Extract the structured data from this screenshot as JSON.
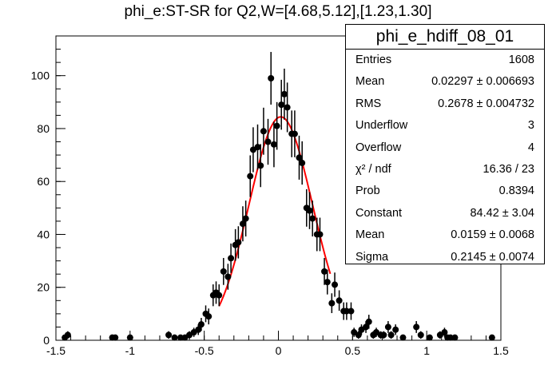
{
  "title": "phi_e:ST-SR for Q2,W=[4.68,5.12],[1.23,1.30]",
  "stats": {
    "name": "phi_e_hdiff_08_01",
    "rows": [
      {
        "key": "Entries",
        "value": "1608"
      },
      {
        "key": "Mean",
        "value": "0.02297 ± 0.006693"
      },
      {
        "key": "RMS",
        "value": "0.2678 ± 0.004732"
      },
      {
        "key": "Underflow",
        "value": "3"
      },
      {
        "key": "Overflow",
        "value": "4"
      },
      {
        "key": "χ² / ndf",
        "value": "16.36 / 23"
      },
      {
        "key": "Prob",
        "value": "0.8394"
      },
      {
        "key": "Constant",
        "value": "84.42 ± 3.04"
      },
      {
        "key": "Mean",
        "value": "0.0159 ± 0.0068"
      },
      {
        "key": "Sigma",
        "value": "0.2145 ± 0.0074"
      }
    ]
  },
  "chart_data": {
    "type": "scatter",
    "title": "phi_e:ST-SR for Q2,W=[4.68,5.12],[1.23,1.30]",
    "xlim": [
      -1.5,
      1.5
    ],
    "ylim": [
      0,
      115
    ],
    "xticks": [
      "-1.5",
      "-1",
      "-0.5",
      "0",
      "0.5",
      "1",
      "1.5"
    ],
    "yticks": [
      "0",
      "20",
      "40",
      "60",
      "80",
      "100"
    ],
    "grid": false,
    "marker_color": "#000000",
    "fit_color": "#ff0000",
    "fit": {
      "function": "gaus",
      "constant": 84.42,
      "mean": 0.0159,
      "sigma": 0.2145,
      "range": [
        -0.4,
        0.35
      ]
    },
    "series": [
      {
        "values": [
          [
            -1.44,
            1
          ],
          [
            -1.42,
            2
          ],
          [
            -1.12,
            1
          ],
          [
            -1.1,
            1
          ],
          [
            -1.0,
            1
          ],
          [
            -0.74,
            2
          ],
          [
            -0.7,
            1
          ],
          [
            -0.66,
            1
          ],
          [
            -0.63,
            1
          ],
          [
            -0.6,
            2
          ],
          [
            -0.57,
            3
          ],
          [
            -0.54,
            4
          ],
          [
            -0.52,
            6
          ],
          [
            -0.49,
            10
          ],
          [
            -0.47,
            9
          ],
          [
            -0.44,
            17
          ],
          [
            -0.42,
            18
          ],
          [
            -0.4,
            17
          ],
          [
            -0.37,
            26
          ],
          [
            -0.34,
            24
          ],
          [
            -0.32,
            31
          ],
          [
            -0.29,
            36
          ],
          [
            -0.27,
            37
          ],
          [
            -0.24,
            44
          ],
          [
            -0.22,
            46
          ],
          [
            -0.19,
            62
          ],
          [
            -0.17,
            72
          ],
          [
            -0.14,
            73
          ],
          [
            -0.12,
            66
          ],
          [
            -0.1,
            79
          ],
          [
            -0.07,
            75
          ],
          [
            -0.05,
            99
          ],
          [
            -0.03,
            74
          ],
          [
            -0.01,
            81
          ],
          [
            0.02,
            89
          ],
          [
            0.04,
            93
          ],
          [
            0.06,
            88
          ],
          [
            0.09,
            78
          ],
          [
            0.11,
            78
          ],
          [
            0.14,
            69
          ],
          [
            0.16,
            67
          ],
          [
            0.19,
            50
          ],
          [
            0.21,
            49
          ],
          [
            0.23,
            46
          ],
          [
            0.26,
            40
          ],
          [
            0.28,
            40
          ],
          [
            0.31,
            26
          ],
          [
            0.33,
            22
          ],
          [
            0.36,
            14
          ],
          [
            0.38,
            21
          ],
          [
            0.41,
            15
          ],
          [
            0.44,
            11
          ],
          [
            0.46,
            11
          ],
          [
            0.49,
            11
          ],
          [
            0.51,
            3
          ],
          [
            0.54,
            2
          ],
          [
            0.56,
            4
          ],
          [
            0.59,
            5
          ],
          [
            0.61,
            7
          ],
          [
            0.64,
            2
          ],
          [
            0.66,
            3
          ],
          [
            0.69,
            2
          ],
          [
            0.71,
            2
          ],
          [
            0.74,
            5
          ],
          [
            0.76,
            2
          ],
          [
            0.79,
            4
          ],
          [
            0.84,
            1
          ],
          [
            0.93,
            5
          ],
          [
            0.96,
            2
          ],
          [
            1.02,
            1
          ],
          [
            1.09,
            2
          ],
          [
            1.12,
            3
          ],
          [
            1.14,
            1
          ],
          [
            1.16,
            1
          ],
          [
            1.19,
            1
          ],
          [
            1.44,
            1
          ]
        ]
      }
    ]
  }
}
